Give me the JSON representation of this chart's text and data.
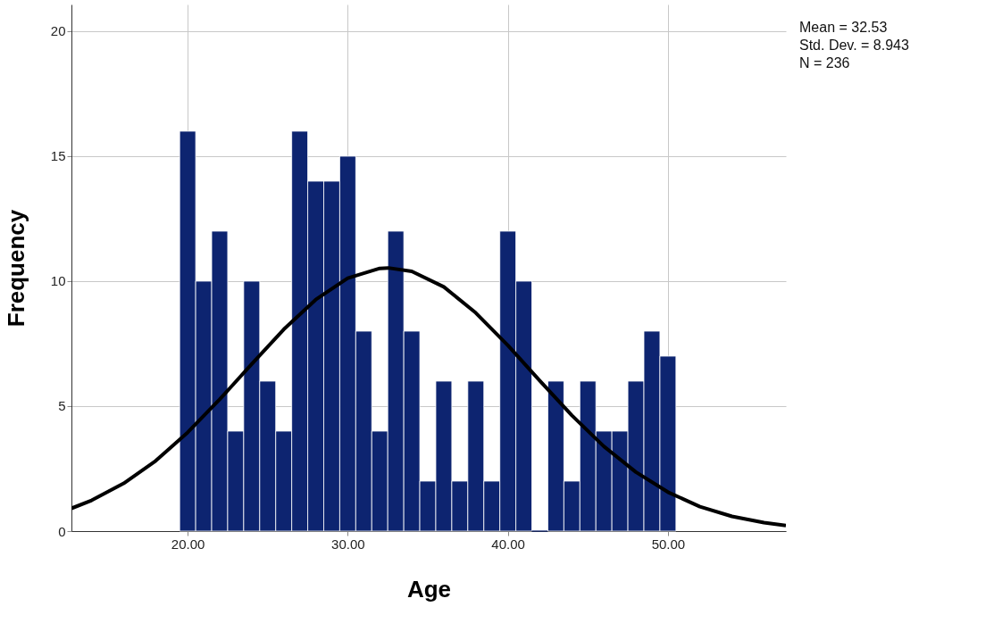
{
  "chart_data": {
    "type": "histogram",
    "xlabel": "Age",
    "ylabel": "Frequency",
    "bins": [
      19.5,
      20.5,
      21.5,
      22.5,
      23.5,
      24.5,
      25.5,
      26.5,
      27.5,
      28.5,
      29.5,
      30.5,
      31.5,
      32.5,
      33.5,
      34.5,
      35.5,
      36.5,
      37.5,
      38.5,
      39.5,
      40.5,
      41.5,
      42.5,
      43.5,
      44.5,
      45.5,
      46.5,
      47.5,
      48.5,
      49.5,
      50.5
    ],
    "values": [
      16,
      10,
      12,
      4,
      10,
      6,
      4,
      16,
      14,
      14,
      15,
      8,
      4,
      12,
      8,
      2,
      6,
      2,
      6,
      2,
      12,
      10,
      0,
      6,
      2,
      6,
      4,
      4,
      6,
      8,
      7
    ],
    "color": "#0d2470",
    "series": [
      {
        "type": "line",
        "color": "#000000",
        "x": [
          12.74,
          14,
          16,
          18,
          20,
          22,
          24,
          26,
          28,
          30,
          32,
          32.53,
          34,
          36,
          38,
          40,
          42,
          44,
          46,
          48,
          50,
          52,
          54,
          56,
          57.37
        ],
        "values": [
          0.91,
          1.23,
          1.91,
          2.81,
          3.95,
          5.27,
          6.68,
          8.07,
          9.26,
          10.12,
          10.51,
          10.53,
          10.39,
          9.77,
          8.73,
          7.43,
          6.01,
          4.63,
          3.39,
          2.36,
          1.56,
          0.98,
          0.59,
          0.34,
          0.22
        ]
      }
    ],
    "xlim": [
      12.74,
      57.37
    ],
    "ylim": [
      0,
      21.07
    ],
    "xticks": [
      {
        "value": 20,
        "label": "20.00"
      },
      {
        "value": 30,
        "label": "30.00"
      },
      {
        "value": 40,
        "label": "40.00"
      },
      {
        "value": 50,
        "label": "50.00"
      }
    ],
    "yticks": [
      0,
      5,
      10,
      15,
      20
    ],
    "grid": true,
    "annotations": [
      "Mean = 32.53",
      "Std. Dev. = 8.943",
      "N = 236"
    ]
  }
}
